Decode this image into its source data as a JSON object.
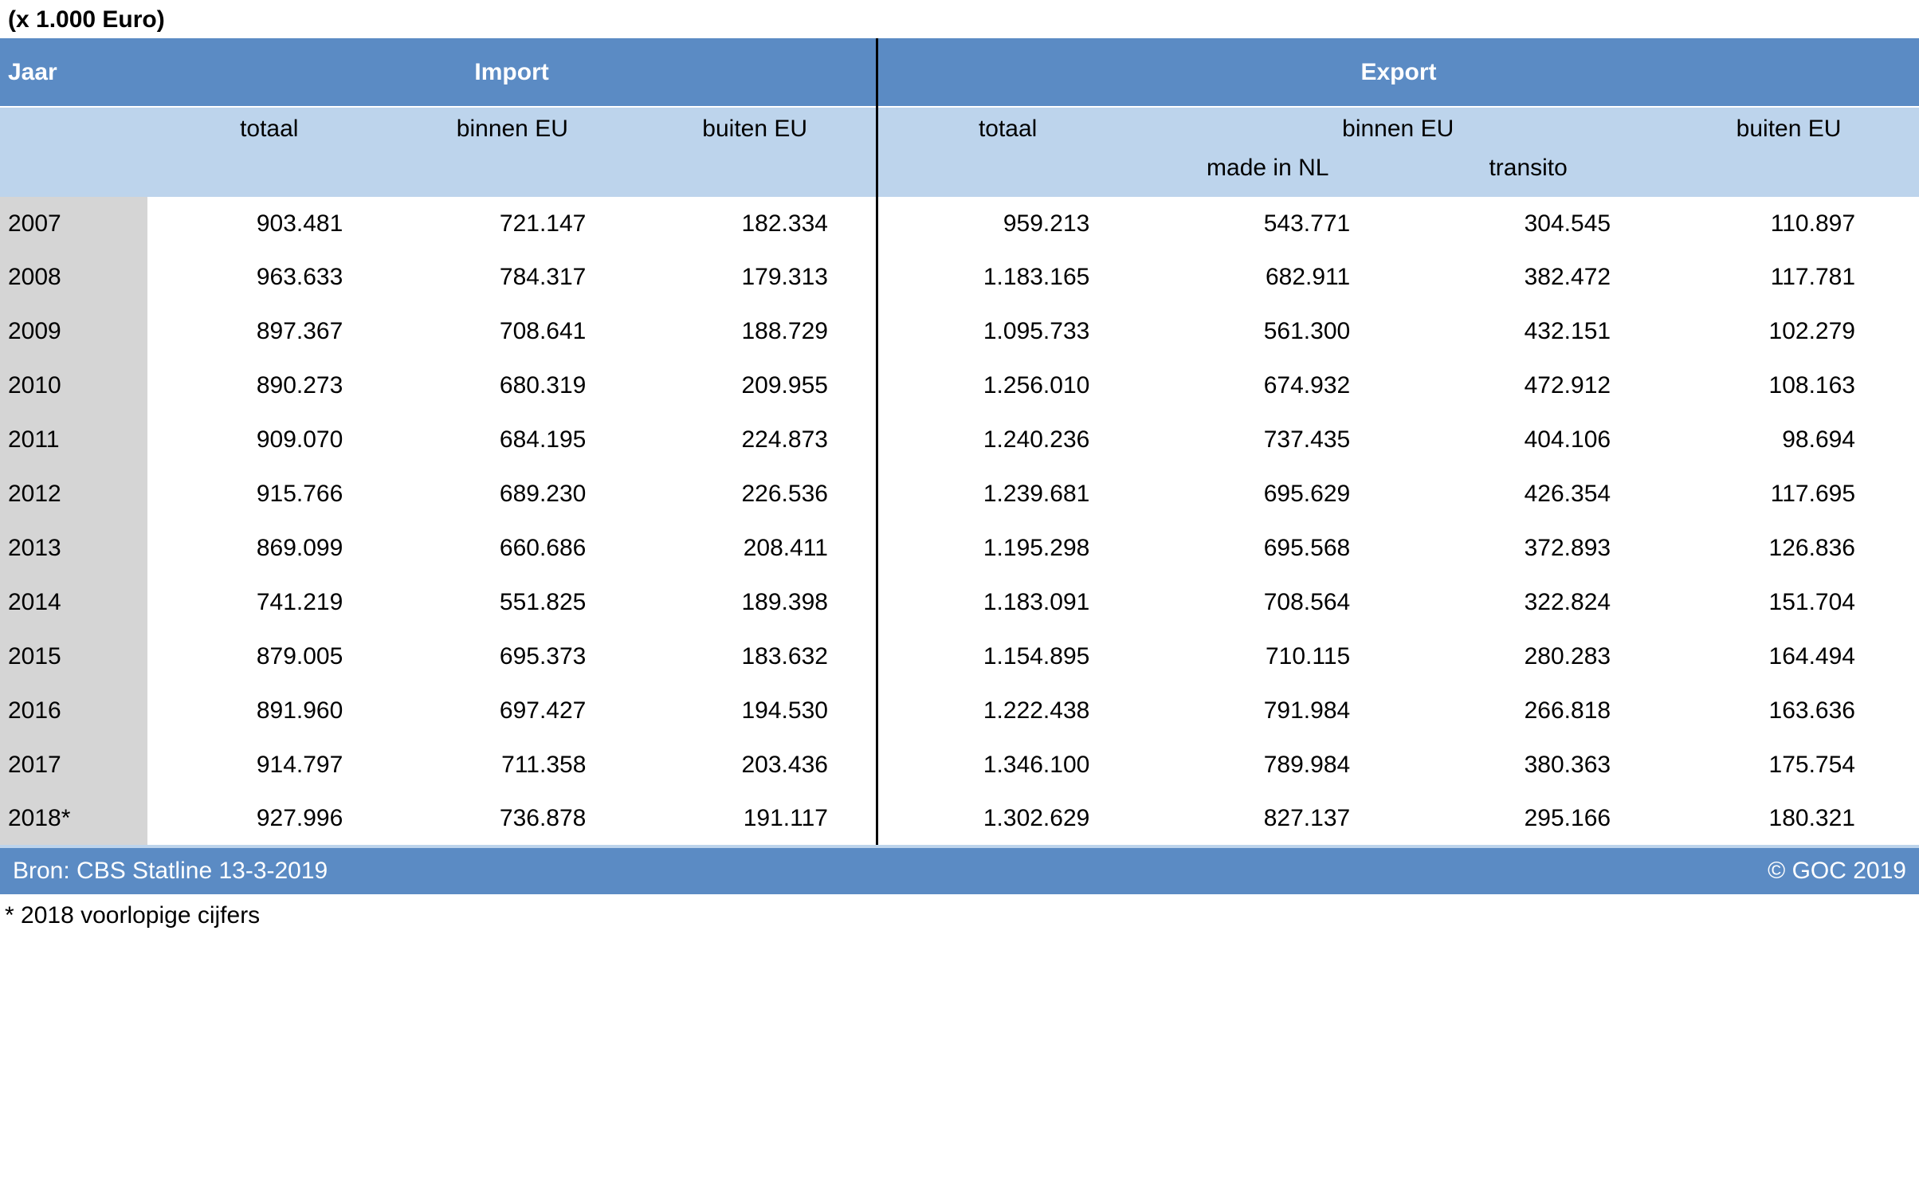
{
  "meta": {
    "unit_note": "(x 1.000 Euro)",
    "source_label": "Bron: CBS Statline 13-3-2019",
    "copyright": "© GOC 2019",
    "footnote": "* 2018 voorlopige cijfers"
  },
  "colors": {
    "header_bg": "#5b8bc4",
    "subheader_bg": "#bdd4ec",
    "year_col_bg": "#d5d5d5",
    "header_text": "#ffffff",
    "body_text": "#000000",
    "divider": "#000000"
  },
  "headers": {
    "jaar": "Jaar",
    "import": "Import",
    "export": "Export",
    "totaal": "totaal",
    "binnen_eu": "binnen EU",
    "buiten_eu": "buiten EU",
    "made_in_nl": "made in NL",
    "transito": "transito"
  },
  "rows": [
    {
      "year": "2007",
      "imp_totaal": "903.481",
      "imp_binnen": "721.147",
      "imp_buiten": "182.334",
      "exp_totaal": "959.213",
      "exp_made": "543.771",
      "exp_transito": "304.545",
      "exp_buiten": "110.897"
    },
    {
      "year": "2008",
      "imp_totaal": "963.633",
      "imp_binnen": "784.317",
      "imp_buiten": "179.313",
      "exp_totaal": "1.183.165",
      "exp_made": "682.911",
      "exp_transito": "382.472",
      "exp_buiten": "117.781"
    },
    {
      "year": "2009",
      "imp_totaal": "897.367",
      "imp_binnen": "708.641",
      "imp_buiten": "188.729",
      "exp_totaal": "1.095.733",
      "exp_made": "561.300",
      "exp_transito": "432.151",
      "exp_buiten": "102.279"
    },
    {
      "year": "2010",
      "imp_totaal": "890.273",
      "imp_binnen": "680.319",
      "imp_buiten": "209.955",
      "exp_totaal": "1.256.010",
      "exp_made": "674.932",
      "exp_transito": "472.912",
      "exp_buiten": "108.163"
    },
    {
      "year": "2011",
      "imp_totaal": "909.070",
      "imp_binnen": "684.195",
      "imp_buiten": "224.873",
      "exp_totaal": "1.240.236",
      "exp_made": "737.435",
      "exp_transito": "404.106",
      "exp_buiten": "98.694"
    },
    {
      "year": "2012",
      "imp_totaal": "915.766",
      "imp_binnen": "689.230",
      "imp_buiten": "226.536",
      "exp_totaal": "1.239.681",
      "exp_made": "695.629",
      "exp_transito": "426.354",
      "exp_buiten": "117.695"
    },
    {
      "year": "2013",
      "imp_totaal": "869.099",
      "imp_binnen": "660.686",
      "imp_buiten": "208.411",
      "exp_totaal": "1.195.298",
      "exp_made": "695.568",
      "exp_transito": "372.893",
      "exp_buiten": "126.836"
    },
    {
      "year": "2014",
      "imp_totaal": "741.219",
      "imp_binnen": "551.825",
      "imp_buiten": "189.398",
      "exp_totaal": "1.183.091",
      "exp_made": "708.564",
      "exp_transito": "322.824",
      "exp_buiten": "151.704"
    },
    {
      "year": "2015",
      "imp_totaal": "879.005",
      "imp_binnen": "695.373",
      "imp_buiten": "183.632",
      "exp_totaal": "1.154.895",
      "exp_made": "710.115",
      "exp_transito": "280.283",
      "exp_buiten": "164.494"
    },
    {
      "year": "2016",
      "imp_totaal": "891.960",
      "imp_binnen": "697.427",
      "imp_buiten": "194.530",
      "exp_totaal": "1.222.438",
      "exp_made": "791.984",
      "exp_transito": "266.818",
      "exp_buiten": "163.636"
    },
    {
      "year": "2017",
      "imp_totaal": "914.797",
      "imp_binnen": "711.358",
      "imp_buiten": "203.436",
      "exp_totaal": "1.346.100",
      "exp_made": "789.984",
      "exp_transito": "380.363",
      "exp_buiten": "175.754"
    },
    {
      "year": "2018*",
      "imp_totaal": "927.996",
      "imp_binnen": "736.878",
      "imp_buiten": "191.117",
      "exp_totaal": "1.302.629",
      "exp_made": "827.137",
      "exp_transito": "295.166",
      "exp_buiten": "180.321"
    }
  ]
}
